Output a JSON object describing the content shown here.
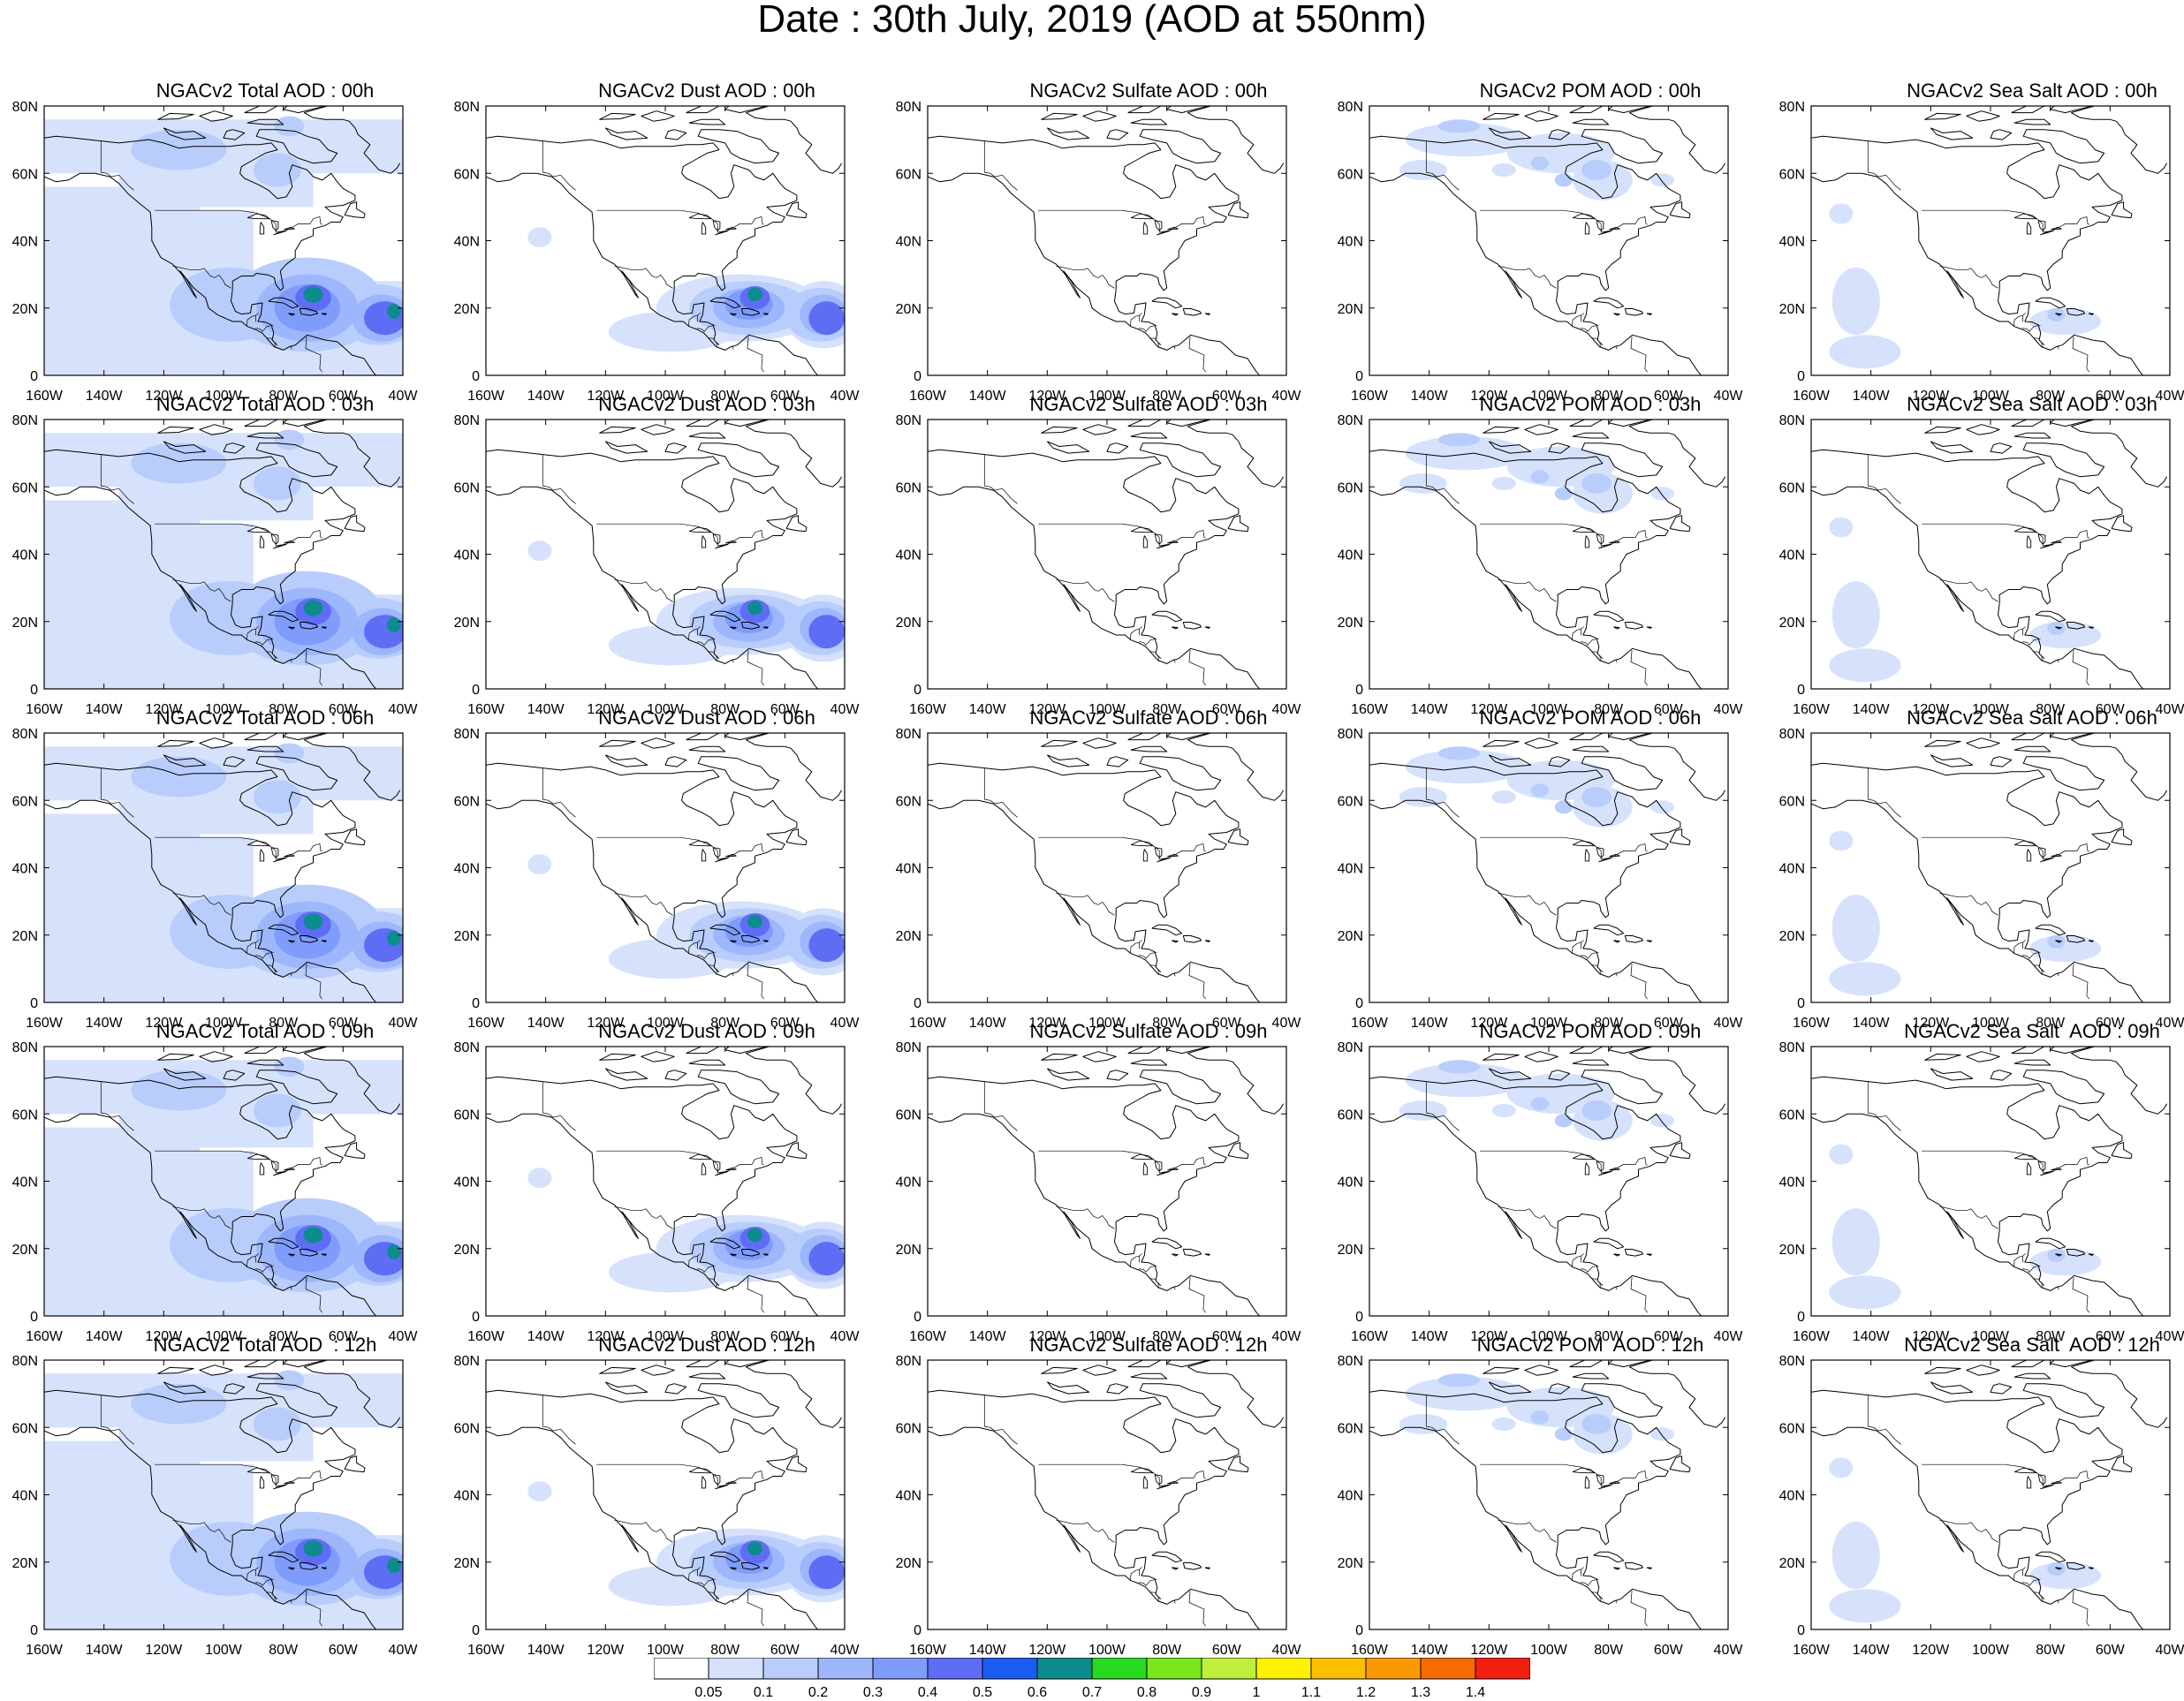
{
  "title": "Date : 30th July, 2019 (AOD at 550nm)",
  "axes": {
    "lat_ticks": [
      "0",
      "20N",
      "40N",
      "60N",
      "80N"
    ],
    "lon_ticks": [
      "160W",
      "140W",
      "120W",
      "100W",
      "80W",
      "60W",
      "40W"
    ],
    "lat_range": [
      0,
      80
    ],
    "lon_range": [
      -160,
      -40
    ]
  },
  "colorbar": {
    "labels": [
      "0.05",
      "0.1",
      "0.2",
      "0.3",
      "0.4",
      "0.5",
      "0.6",
      "0.7",
      "0.8",
      "0.9",
      "1",
      "1.1",
      "1.2",
      "1.3",
      "1.4"
    ],
    "colors": [
      "#ffffff",
      "#d6e2fc",
      "#b9cdfc",
      "#9db6fc",
      "#7f9cfb",
      "#5f6df5",
      "#1a5cf2",
      "#0c8c8c",
      "#27d91f",
      "#78e81c",
      "#bfef3c",
      "#fff200",
      "#fcc000",
      "#fb9a00",
      "#f66a00",
      "#f22010"
    ]
  },
  "panels": [
    {
      "title": "NGACv2 Total AOD : 00h",
      "type": "total"
    },
    {
      "title": "NGACv2 Dust AOD : 00h",
      "type": "dust"
    },
    {
      "title": "NGACv2 Sulfate AOD : 00h",
      "type": "sulfate"
    },
    {
      "title": "NGACv2 POM AOD : 00h",
      "type": "pom"
    },
    {
      "title": "NGACv2 Sea Salt AOD : 00h",
      "type": "seasalt"
    },
    {
      "title": "NGACv2 Total AOD : 03h",
      "type": "total"
    },
    {
      "title": "NGACv2 Dust AOD : 03h",
      "type": "dust"
    },
    {
      "title": "NGACv2 Sulfate AOD : 03h",
      "type": "sulfate"
    },
    {
      "title": "NGACv2 POM AOD : 03h",
      "type": "pom"
    },
    {
      "title": "NGACv2 Sea Salt AOD : 03h",
      "type": "seasalt"
    },
    {
      "title": "NGACv2 Total AOD : 06h",
      "type": "total"
    },
    {
      "title": "NGACv2 Dust AOD : 06h",
      "type": "dust"
    },
    {
      "title": "NGACv2 Sulfate AOD : 06h",
      "type": "sulfate"
    },
    {
      "title": "NGACv2 POM AOD : 06h",
      "type": "pom"
    },
    {
      "title": "NGACv2 Sea Salt AOD : 06h",
      "type": "seasalt"
    },
    {
      "title": "NGACv2 Total AOD : 09h",
      "type": "total"
    },
    {
      "title": "NGACv2 Dust AOD : 09h",
      "type": "dust"
    },
    {
      "title": "NGACv2 Sulfate AOD : 09h",
      "type": "sulfate"
    },
    {
      "title": "NGACv2 POM AOD : 09h",
      "type": "pom"
    },
    {
      "title": "NGACv2 Sea Salt  AOD : 09h",
      "type": "seasalt"
    },
    {
      "title": "NGACv2 Total AOD  : 12h",
      "type": "total"
    },
    {
      "title": "NGACv2 Dust AOD : 12h",
      "type": "dust"
    },
    {
      "title": "NGACv2 Sulfate AOD : 12h",
      "type": "sulfate"
    },
    {
      "title": "NGACv2 POM  AOD : 12h",
      "type": "pom"
    },
    {
      "title": "NGACv2 Sea Salt  AOD : 12h",
      "type": "seasalt"
    }
  ]
}
